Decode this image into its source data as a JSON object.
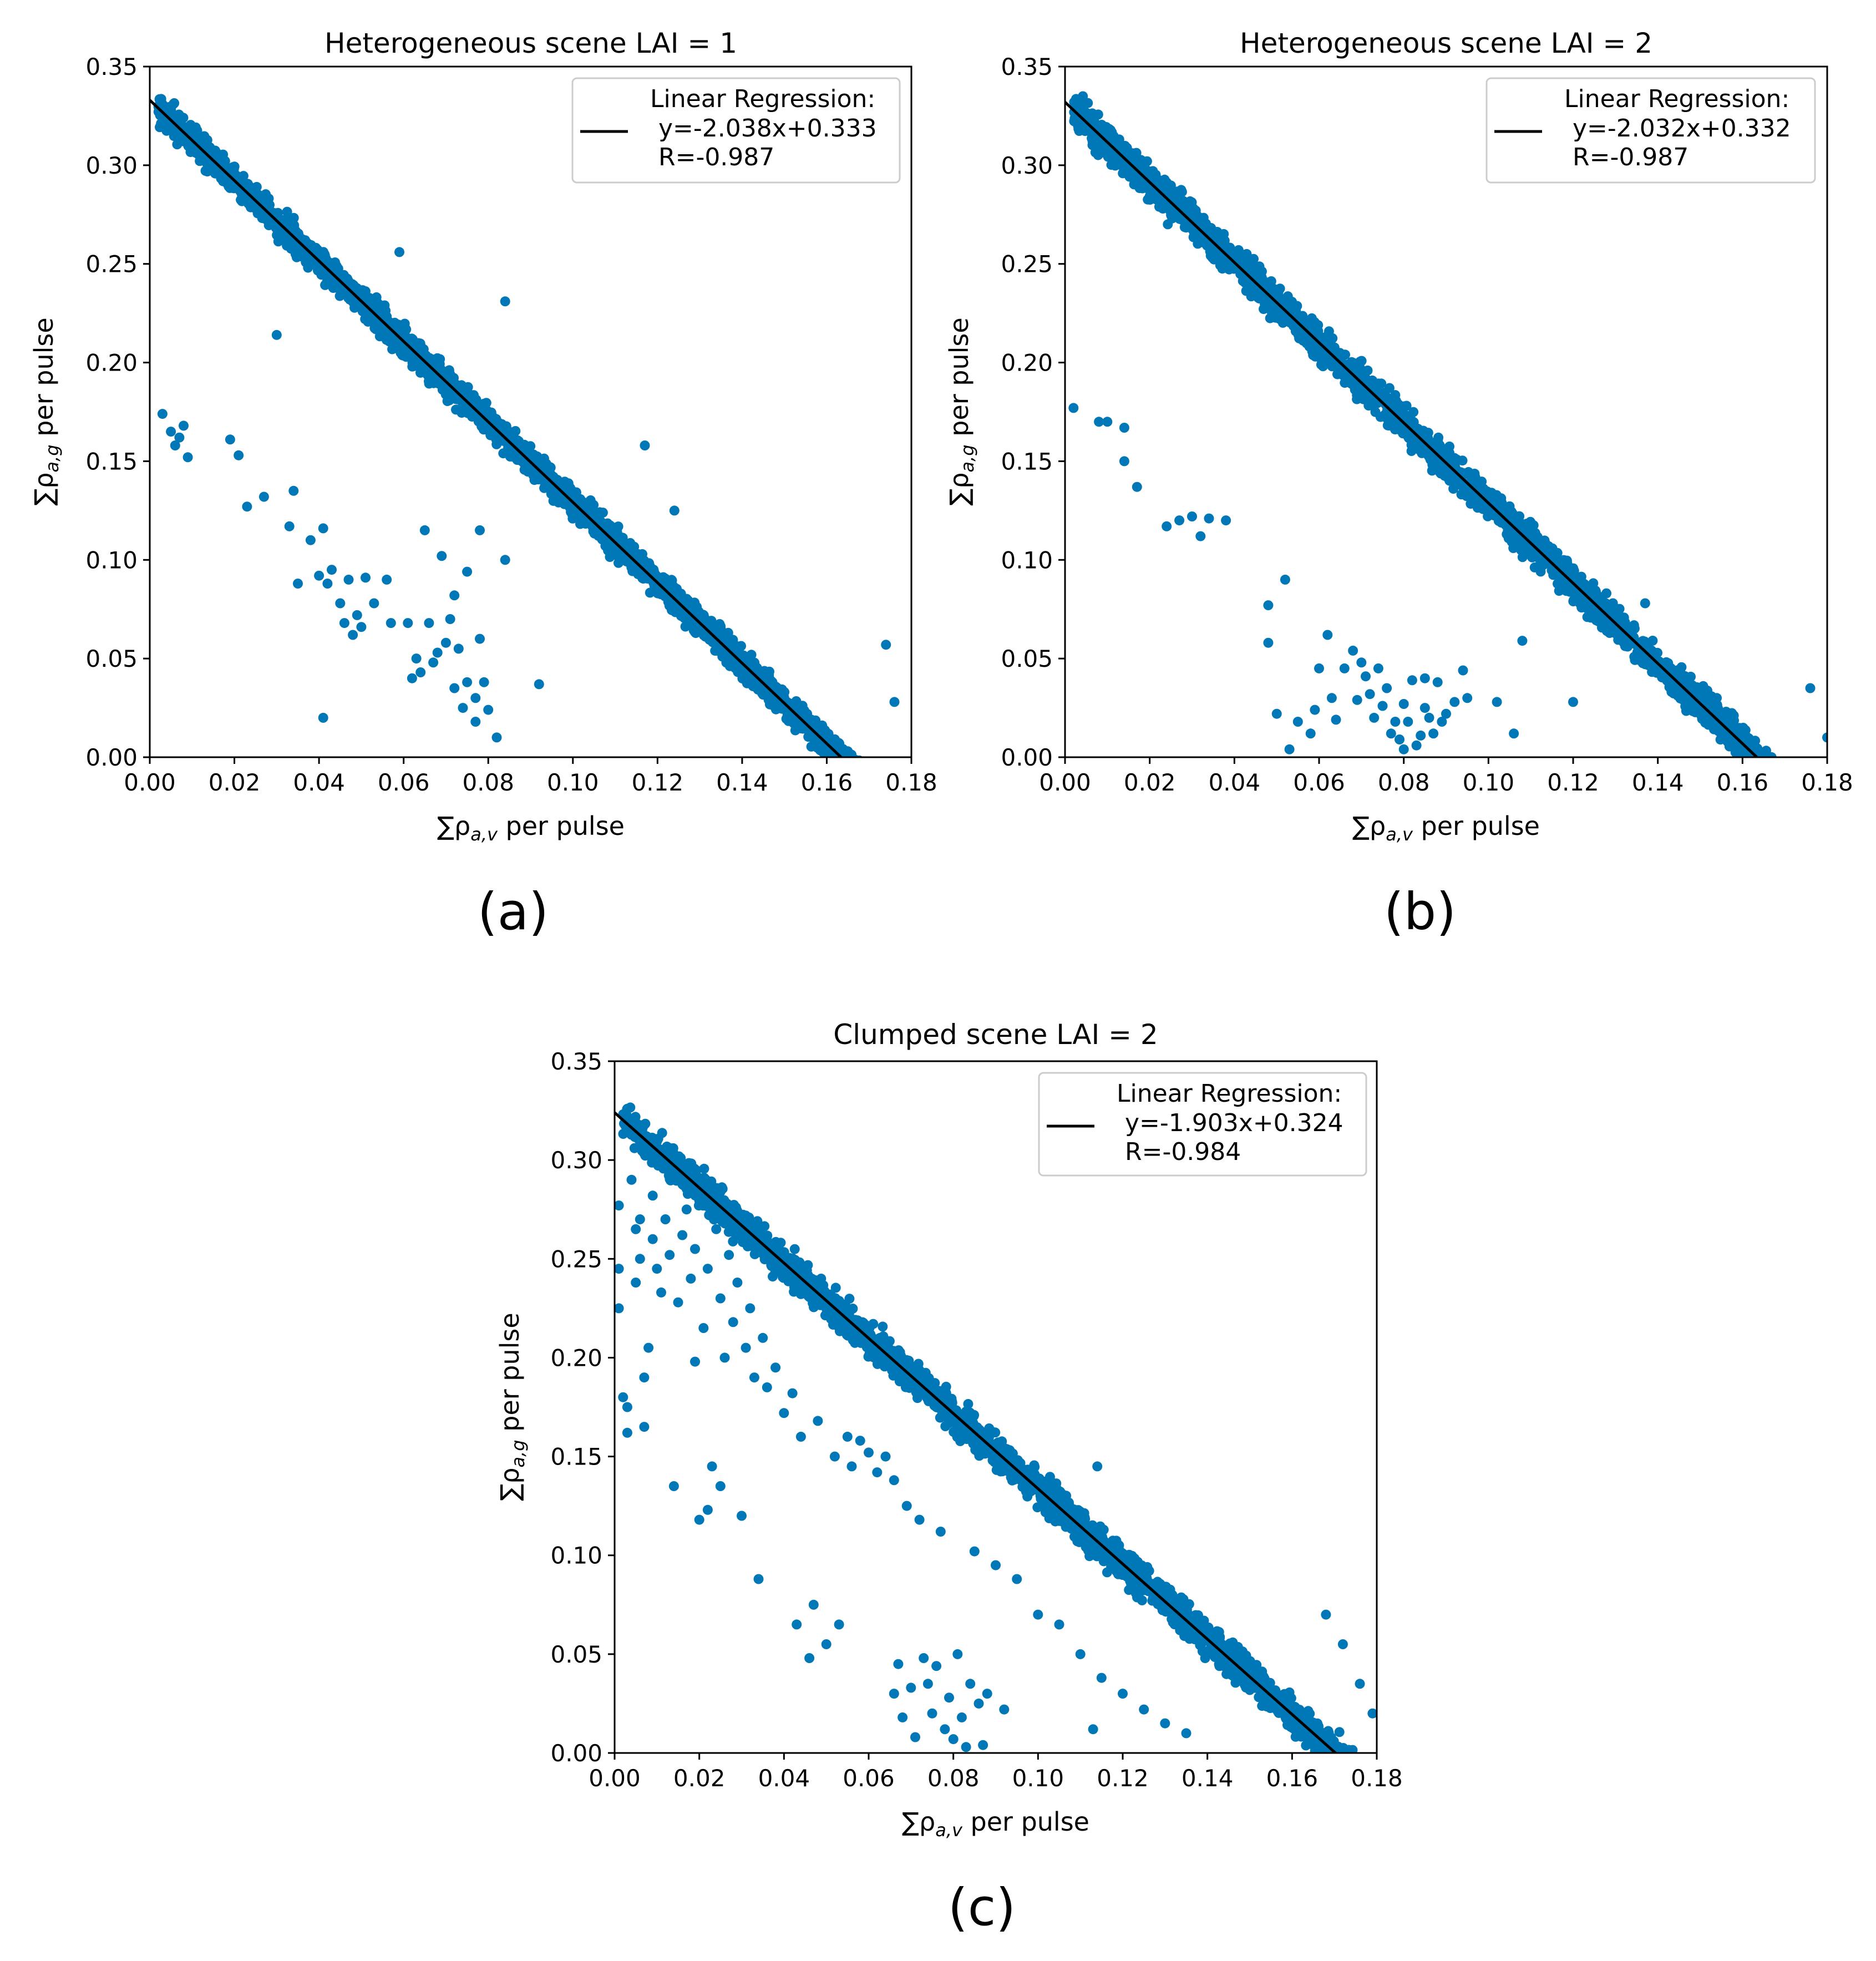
{
  "chart_data": [
    {
      "type": "scatter",
      "title": "Heterogeneous scene LAI = 1",
      "xlabel_sym": "∑ρ",
      "xlabel_sub": "a,v",
      "xlabel_rest": " per pulse",
      "ylabel_sym": "∑ρ",
      "ylabel_sub": "a,g",
      "ylabel_rest": " per pulse",
      "xlim": [
        0,
        0.18
      ],
      "ylim": [
        0,
        0.35
      ],
      "xticks": [
        "0.00",
        "0.02",
        "0.04",
        "0.06",
        "0.08",
        "0.10",
        "0.12",
        "0.14",
        "0.16",
        "0.18"
      ],
      "yticks": [
        "0.00",
        "0.05",
        "0.10",
        "0.15",
        "0.20",
        "0.25",
        "0.30",
        "0.35"
      ],
      "point_color": "#0077b6",
      "line_color": "#000000",
      "fit": {
        "slope": -2.038,
        "intercept": 0.333
      },
      "band": {
        "x_start": 0.002,
        "x_end": 0.172,
        "halfwidth": 0.011
      },
      "legend": {
        "title": "Linear Regression:",
        "line1": "y=-2.038x+0.333",
        "line2": "R=-0.987",
        "loc": "upper right"
      },
      "outliers": [
        [
          0.003,
          0.174
        ],
        [
          0.005,
          0.165
        ],
        [
          0.006,
          0.158
        ],
        [
          0.007,
          0.162
        ],
        [
          0.008,
          0.168
        ],
        [
          0.009,
          0.152
        ],
        [
          0.019,
          0.161
        ],
        [
          0.021,
          0.153
        ],
        [
          0.023,
          0.127
        ],
        [
          0.027,
          0.132
        ],
        [
          0.03,
          0.214
        ],
        [
          0.033,
          0.117
        ],
        [
          0.034,
          0.135
        ],
        [
          0.035,
          0.088
        ],
        [
          0.038,
          0.11
        ],
        [
          0.04,
          0.092
        ],
        [
          0.041,
          0.02
        ],
        [
          0.041,
          0.116
        ],
        [
          0.042,
          0.088
        ],
        [
          0.043,
          0.095
        ],
        [
          0.045,
          0.078
        ],
        [
          0.046,
          0.068
        ],
        [
          0.047,
          0.09
        ],
        [
          0.048,
          0.062
        ],
        [
          0.049,
          0.072
        ],
        [
          0.05,
          0.066
        ],
        [
          0.051,
          0.091
        ],
        [
          0.053,
          0.078
        ],
        [
          0.056,
          0.09
        ],
        [
          0.057,
          0.068
        ],
        [
          0.061,
          0.068
        ],
        [
          0.062,
          0.04
        ],
        [
          0.063,
          0.05
        ],
        [
          0.064,
          0.043
        ],
        [
          0.065,
          0.115
        ],
        [
          0.066,
          0.068
        ],
        [
          0.067,
          0.048
        ],
        [
          0.068,
          0.053
        ],
        [
          0.069,
          0.102
        ],
        [
          0.07,
          0.058
        ],
        [
          0.071,
          0.07
        ],
        [
          0.072,
          0.035
        ],
        [
          0.072,
          0.082
        ],
        [
          0.073,
          0.055
        ],
        [
          0.074,
          0.025
        ],
        [
          0.075,
          0.038
        ],
        [
          0.075,
          0.094
        ],
        [
          0.077,
          0.03
        ],
        [
          0.077,
          0.018
        ],
        [
          0.078,
          0.06
        ],
        [
          0.079,
          0.038
        ],
        [
          0.08,
          0.024
        ],
        [
          0.078,
          0.115
        ],
        [
          0.082,
          0.01
        ],
        [
          0.084,
          0.1
        ],
        [
          0.092,
          0.037
        ],
        [
          0.084,
          0.231
        ],
        [
          0.059,
          0.256
        ],
        [
          0.117,
          0.158
        ],
        [
          0.124,
          0.125
        ],
        [
          0.174,
          0.057
        ],
        [
          0.176,
          0.028
        ]
      ]
    },
    {
      "type": "scatter",
      "title": "Heterogeneous scene LAI = 2",
      "xlabel_sym": "∑ρ",
      "xlabel_sub": "a,v",
      "xlabel_rest": " per pulse",
      "ylabel_sym": "∑ρ",
      "ylabel_sub": "a,g",
      "ylabel_rest": " per pulse",
      "xlim": [
        0,
        0.18
      ],
      "ylim": [
        0,
        0.35
      ],
      "xticks": [
        "0.00",
        "0.02",
        "0.04",
        "0.06",
        "0.08",
        "0.10",
        "0.12",
        "0.14",
        "0.16",
        "0.18"
      ],
      "yticks": [
        "0.00",
        "0.05",
        "0.10",
        "0.15",
        "0.20",
        "0.25",
        "0.30",
        "0.35"
      ],
      "point_color": "#0077b6",
      "line_color": "#000000",
      "fit": {
        "slope": -2.032,
        "intercept": 0.332
      },
      "band": {
        "x_start": 0.002,
        "x_end": 0.178,
        "halfwidth": 0.013
      },
      "legend": {
        "title": "Linear Regression:",
        "line1": "y=-2.032x+0.332",
        "line2": "R=-0.987",
        "loc": "upper right"
      },
      "outliers": [
        [
          0.002,
          0.177
        ],
        [
          0.008,
          0.17
        ],
        [
          0.01,
          0.17
        ],
        [
          0.014,
          0.167
        ],
        [
          0.014,
          0.15
        ],
        [
          0.017,
          0.137
        ],
        [
          0.024,
          0.117
        ],
        [
          0.027,
          0.12
        ],
        [
          0.03,
          0.122
        ],
        [
          0.032,
          0.112
        ],
        [
          0.034,
          0.121
        ],
        [
          0.038,
          0.12
        ],
        [
          0.048,
          0.077
        ],
        [
          0.048,
          0.058
        ],
        [
          0.05,
          0.022
        ],
        [
          0.052,
          0.09
        ],
        [
          0.053,
          0.004
        ],
        [
          0.055,
          0.018
        ],
        [
          0.058,
          0.012
        ],
        [
          0.059,
          0.024
        ],
        [
          0.06,
          0.045
        ],
        [
          0.062,
          0.062
        ],
        [
          0.063,
          0.03
        ],
        [
          0.064,
          0.019
        ],
        [
          0.066,
          0.045
        ],
        [
          0.068,
          0.054
        ],
        [
          0.069,
          0.029
        ],
        [
          0.07,
          0.048
        ],
        [
          0.071,
          0.041
        ],
        [
          0.072,
          0.032
        ],
        [
          0.073,
          0.02
        ],
        [
          0.074,
          0.045
        ],
        [
          0.075,
          0.026
        ],
        [
          0.076,
          0.035
        ],
        [
          0.077,
          0.012
        ],
        [
          0.078,
          0.018
        ],
        [
          0.079,
          0.009
        ],
        [
          0.08,
          0.004
        ],
        [
          0.08,
          0.027
        ],
        [
          0.081,
          0.018
        ],
        [
          0.082,
          0.039
        ],
        [
          0.083,
          0.006
        ],
        [
          0.084,
          0.011
        ],
        [
          0.085,
          0.025
        ],
        [
          0.086,
          0.02
        ],
        [
          0.087,
          0.012
        ],
        [
          0.088,
          0.038
        ],
        [
          0.089,
          0.018
        ],
        [
          0.09,
          0.022
        ],
        [
          0.092,
          0.028
        ],
        [
          0.085,
          0.04
        ],
        [
          0.094,
          0.044
        ],
        [
          0.095,
          0.03
        ],
        [
          0.102,
          0.028
        ],
        [
          0.106,
          0.012
        ],
        [
          0.108,
          0.059
        ],
        [
          0.12,
          0.028
        ],
        [
          0.137,
          0.078
        ],
        [
          0.176,
          0.035
        ],
        [
          0.18,
          0.01
        ]
      ]
    },
    {
      "type": "scatter",
      "title": "Clumped scene LAI = 2",
      "xlabel_sym": "∑ρ",
      "xlabel_sub": "a,v",
      "xlabel_rest": " per pulse",
      "ylabel_sym": "∑ρ",
      "ylabel_sub": "a,g",
      "ylabel_rest": " per pulse",
      "xlim": [
        0,
        0.18
      ],
      "ylim": [
        0,
        0.35
      ],
      "xticks": [
        "0.00",
        "0.02",
        "0.04",
        "0.06",
        "0.08",
        "0.10",
        "0.12",
        "0.14",
        "0.16",
        "0.18"
      ],
      "yticks": [
        "0.00",
        "0.05",
        "0.10",
        "0.15",
        "0.20",
        "0.25",
        "0.30",
        "0.35"
      ],
      "point_color": "#0077b6",
      "line_color": "#000000",
      "fit": {
        "slope": -1.903,
        "intercept": 0.324
      },
      "band": {
        "x_start": 0.002,
        "x_end": 0.18,
        "halfwidth": 0.013
      },
      "legend": {
        "title": "Linear Regression:",
        "line1": "y=-1.903x+0.324",
        "line2": "R=-0.984",
        "loc": "upper right"
      },
      "outliers": [
        [
          0.001,
          0.277
        ],
        [
          0.001,
          0.245
        ],
        [
          0.001,
          0.225
        ],
        [
          0.002,
          0.18
        ],
        [
          0.003,
          0.175
        ],
        [
          0.003,
          0.162
        ],
        [
          0.004,
          0.29
        ],
        [
          0.005,
          0.265
        ],
        [
          0.005,
          0.238
        ],
        [
          0.006,
          0.27
        ],
        [
          0.006,
          0.25
        ],
        [
          0.007,
          0.19
        ],
        [
          0.007,
          0.165
        ],
        [
          0.008,
          0.205
        ],
        [
          0.009,
          0.282
        ],
        [
          0.009,
          0.26
        ],
        [
          0.01,
          0.245
        ],
        [
          0.011,
          0.298
        ],
        [
          0.011,
          0.233
        ],
        [
          0.012,
          0.27
        ],
        [
          0.013,
          0.252
        ],
        [
          0.014,
          0.29
        ],
        [
          0.014,
          0.135
        ],
        [
          0.015,
          0.228
        ],
        [
          0.016,
          0.262
        ],
        [
          0.017,
          0.275
        ],
        [
          0.018,
          0.24
        ],
        [
          0.019,
          0.255
        ],
        [
          0.019,
          0.198
        ],
        [
          0.02,
          0.118
        ],
        [
          0.021,
          0.215
        ],
        [
          0.022,
          0.245
        ],
        [
          0.022,
          0.123
        ],
        [
          0.023,
          0.145
        ],
        [
          0.024,
          0.265
        ],
        [
          0.025,
          0.23
        ],
        [
          0.025,
          0.135
        ],
        [
          0.026,
          0.2
        ],
        [
          0.027,
          0.252
        ],
        [
          0.028,
          0.218
        ],
        [
          0.029,
          0.238
        ],
        [
          0.03,
          0.12
        ],
        [
          0.031,
          0.205
        ],
        [
          0.032,
          0.225
        ],
        [
          0.033,
          0.19
        ],
        [
          0.034,
          0.088
        ],
        [
          0.035,
          0.21
        ],
        [
          0.036,
          0.185
        ],
        [
          0.038,
          0.195
        ],
        [
          0.04,
          0.172
        ],
        [
          0.042,
          0.182
        ],
        [
          0.043,
          0.065
        ],
        [
          0.044,
          0.16
        ],
        [
          0.046,
          0.048
        ],
        [
          0.047,
          0.075
        ],
        [
          0.048,
          0.168
        ],
        [
          0.05,
          0.055
        ],
        [
          0.052,
          0.15
        ],
        [
          0.053,
          0.065
        ],
        [
          0.055,
          0.16
        ],
        [
          0.056,
          0.145
        ],
        [
          0.058,
          0.158
        ],
        [
          0.06,
          0.152
        ],
        [
          0.062,
          0.142
        ],
        [
          0.064,
          0.15
        ],
        [
          0.066,
          0.138
        ],
        [
          0.066,
          0.03
        ],
        [
          0.067,
          0.045
        ],
        [
          0.068,
          0.018
        ],
        [
          0.069,
          0.125
        ],
        [
          0.07,
          0.033
        ],
        [
          0.071,
          0.008
        ],
        [
          0.072,
          0.118
        ],
        [
          0.073,
          0.048
        ],
        [
          0.074,
          0.035
        ],
        [
          0.075,
          0.02
        ],
        [
          0.076,
          0.044
        ],
        [
          0.077,
          0.112
        ],
        [
          0.078,
          0.012
        ],
        [
          0.079,
          0.028
        ],
        [
          0.08,
          0.007
        ],
        [
          0.081,
          0.05
        ],
        [
          0.082,
          0.018
        ],
        [
          0.083,
          0.003
        ],
        [
          0.084,
          0.035
        ],
        [
          0.085,
          0.102
        ],
        [
          0.086,
          0.025
        ],
        [
          0.087,
          0.004
        ],
        [
          0.088,
          0.03
        ],
        [
          0.09,
          0.095
        ],
        [
          0.092,
          0.022
        ],
        [
          0.095,
          0.088
        ],
        [
          0.1,
          0.07
        ],
        [
          0.105,
          0.065
        ],
        [
          0.11,
          0.05
        ],
        [
          0.115,
          0.038
        ],
        [
          0.114,
          0.145
        ],
        [
          0.113,
          0.012
        ],
        [
          0.12,
          0.03
        ],
        [
          0.125,
          0.022
        ],
        [
          0.13,
          0.015
        ],
        [
          0.135,
          0.01
        ],
        [
          0.172,
          0.055
        ],
        [
          0.168,
          0.07
        ],
        [
          0.176,
          0.035
        ],
        [
          0.179,
          0.02
        ]
      ]
    }
  ],
  "panel_labels": [
    "(a)",
    "(b)",
    "(c)"
  ]
}
